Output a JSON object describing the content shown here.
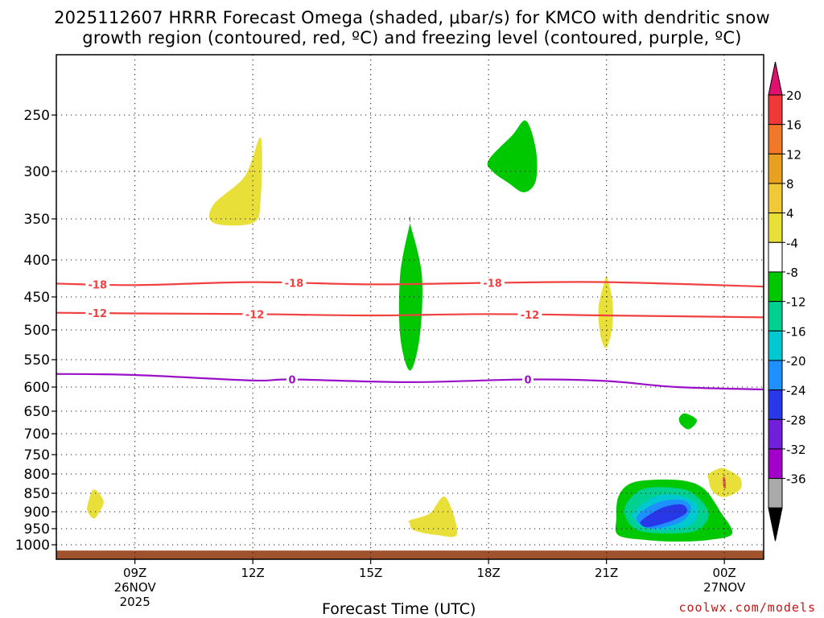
{
  "chart_data": {
    "type": "contour",
    "title_line1": "2025112607 HRRR Forecast Omega (shaded, μbar/s) for KMCO with dendritic snow",
    "title_line2": "growth region (contoured, red, ºC) and freezing level (contoured, purple, ºC)",
    "xlabel": "Forecast Time (UTC)",
    "xlim": [
      7,
      25
    ],
    "ylim": [
      1025,
      200
    ],
    "x_ticks": [
      {
        "value": 9,
        "lines": [
          "09Z",
          "26NOV",
          "2025"
        ]
      },
      {
        "value": 12,
        "lines": [
          "12Z"
        ]
      },
      {
        "value": 15,
        "lines": [
          "15Z"
        ]
      },
      {
        "value": 18,
        "lines": [
          "18Z"
        ]
      },
      {
        "value": 21,
        "lines": [
          "21Z"
        ]
      },
      {
        "value": 24,
        "lines": [
          "00Z",
          "27NOV"
        ]
      }
    ],
    "y_ticks": [
      250,
      300,
      350,
      400,
      450,
      500,
      550,
      600,
      650,
      700,
      750,
      800,
      850,
      900,
      950,
      1000
    ],
    "ground_top_hpa": 1010,
    "colorbar": {
      "labels": [
        "20",
        "16",
        "12",
        "8",
        "4",
        "-4",
        "-8",
        "-12",
        "-16",
        "-20",
        "-24",
        "-28",
        "-32",
        "-36"
      ],
      "top_color": "#e0106e",
      "bottom_color": "#000000",
      "colors": [
        "#f03838",
        "#f07828",
        "#e8a020",
        "#f0c838",
        "#e8e038",
        "#ffffff",
        "#00c800",
        "#00d090",
        "#00c8d0",
        "#1e90ff",
        "#2838e8",
        "#7020d8",
        "#a000c8",
        "#aaaaaa"
      ]
    },
    "contours": [
      {
        "name": "dgz-minus-18",
        "value": -18,
        "label": "-18",
        "color": "#f04040",
        "x": [
          7,
          9,
          12,
          15,
          18,
          21,
          25
        ],
        "y": [
          432,
          434,
          430,
          433,
          431,
          430,
          436
        ],
        "label_x": [
          8.05,
          13.05,
          18.1
        ]
      },
      {
        "name": "dgz-minus-12",
        "value": -12,
        "label": "-12",
        "color": "#f04040",
        "x": [
          7,
          9,
          12,
          15,
          18,
          21,
          25
        ],
        "y": [
          474,
          475,
          476,
          478,
          476,
          478,
          481
        ],
        "label_x": [
          8.05,
          12.05,
          19.05
        ]
      },
      {
        "name": "freezing-level",
        "value": 0,
        "label": "0",
        "color": "#9a10c8",
        "x": [
          7,
          9,
          12,
          13,
          16,
          19,
          21,
          22.8,
          25
        ],
        "y": [
          576,
          578,
          588,
          586,
          591,
          586,
          589,
          600,
          605
        ],
        "label_x": [
          13,
          19
        ]
      }
    ],
    "omega_regions": [
      {
        "value": 4,
        "color": "#e8e038",
        "label": "upward-yellow-300hpa",
        "x": [
          11.0,
          11.8,
          12.2,
          12.2,
          12.0,
          11.0
        ],
        "y": [
          335,
          305,
          270,
          330,
          355,
          355
        ]
      },
      {
        "value": -4,
        "color": "#00c800",
        "label": "downward-green-290hpa",
        "x": [
          18.0,
          18.6,
          18.95,
          19.2,
          19.2,
          18.9,
          18.5,
          18.1
        ],
        "y": [
          290,
          268,
          255,
          280,
          310,
          322,
          312,
          300
        ]
      },
      {
        "value": -4,
        "color": "#00c800",
        "label": "downward-green-column-16z",
        "x": [
          16.0,
          15.75,
          15.75,
          16.0,
          16.25,
          16.3,
          16.0
        ],
        "y": [
          355,
          420,
          510,
          570,
          510,
          420,
          355
        ]
      },
      {
        "value": 4,
        "color": "#e8e038",
        "label": "upward-yellow-21z",
        "x": [
          21.0,
          20.8,
          20.85,
          21.0,
          21.15,
          21.15,
          21.0
        ],
        "y": [
          420,
          465,
          510,
          530,
          495,
          455,
          420
        ]
      },
      {
        "value": 4,
        "color": "#e8e038",
        "label": "upward-yellow-880hpa-08z",
        "x": [
          7.8,
          7.95,
          8.2,
          8.1,
          7.95,
          7.8
        ],
        "y": [
          880,
          840,
          870,
          900,
          920,
          900
        ]
      },
      {
        "value": 4,
        "color": "#e8e038",
        "label": "upward-yellow-930hpa-16z",
        "x": [
          16.0,
          16.5,
          16.9,
          17.2,
          16.7,
          16.1,
          16.0
        ],
        "y": [
          925,
          905,
          860,
          965,
          970,
          955,
          935
        ]
      },
      {
        "value": -4,
        "color": "#00c800",
        "label": "downward-green-675hpa",
        "x": [
          22.85,
          23.0,
          23.3,
          23.1,
          22.9
        ],
        "y": [
          665,
          655,
          670,
          690,
          680
        ]
      },
      {
        "value": 4,
        "color": "#e8e038",
        "label": "upward-yellow-810hpa-00z",
        "x": [
          23.6,
          23.9,
          24.1,
          24.4,
          24.4,
          24.0,
          23.7,
          23.6
        ],
        "y": [
          800,
          785,
          790,
          810,
          840,
          860,
          845,
          815
        ]
      },
      {
        "value": -4,
        "color": "#00c800",
        "label": "downward-green-sfc-22z",
        "x": [
          21.3,
          21.6,
          22.2,
          23.0,
          23.5,
          23.9,
          24.2,
          23.6,
          22.8,
          22.0,
          21.3,
          21.25
        ],
        "y": [
          860,
          825,
          815,
          818,
          840,
          900,
          965,
          985,
          990,
          985,
          970,
          920
        ]
      },
      {
        "value": -8,
        "color": "#00d090",
        "label": "downward-teal-22z",
        "x": [
          21.5,
          21.9,
          22.6,
          23.2,
          23.6,
          23.3,
          22.5,
          21.8,
          21.5
        ],
        "y": [
          880,
          840,
          835,
          850,
          905,
          955,
          965,
          955,
          920
        ]
      },
      {
        "value": -12,
        "color": "#00c8d0",
        "label": "downward-cyan-22z",
        "x": [
          21.7,
          22.2,
          22.8,
          23.3,
          23.2,
          22.5,
          21.9,
          21.7
        ],
        "y": [
          900,
          860,
          855,
          880,
          935,
          955,
          945,
          920
        ]
      },
      {
        "value": -16,
        "color": "#1e90ff",
        "label": "downward-blue-22z",
        "x": [
          21.8,
          22.3,
          22.9,
          23.15,
          22.9,
          22.2,
          21.85
        ],
        "y": [
          910,
          875,
          868,
          890,
          930,
          950,
          935
        ]
      },
      {
        "value": -20,
        "color": "#2838e8",
        "label": "downward-darkblue-22z",
        "x": [
          21.9,
          22.4,
          22.9,
          23.05,
          22.7,
          22.1,
          21.9
        ],
        "y": [
          925,
          890,
          880,
          900,
          925,
          945,
          940
        ]
      },
      {
        "value": 4,
        "color": "#e06050",
        "label": "red-spot-820hpa",
        "x": [
          23.96,
          24.02,
          24.04,
          23.98
        ],
        "y": [
          810,
          810,
          835,
          835
        ]
      }
    ]
  },
  "credit": "coolwx.com/models"
}
